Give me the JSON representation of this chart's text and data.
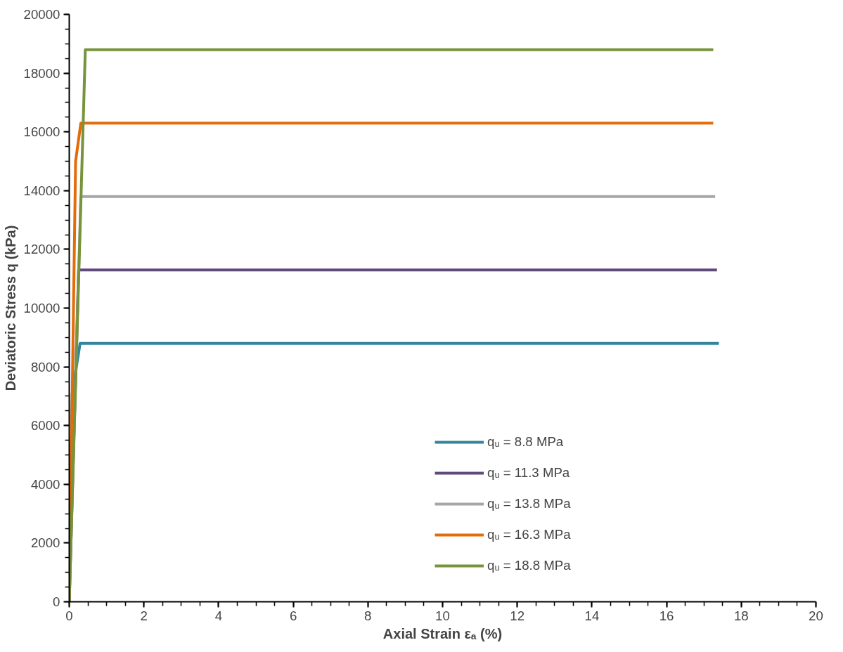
{
  "chart_data": {
    "type": "line",
    "xlabel": "Axial Strain εₐ (%)",
    "ylabel": "Deviatoric Stress q (kPa)",
    "xlim": [
      0,
      20
    ],
    "ylim": [
      0,
      20000
    ],
    "xticks": [
      0,
      2,
      4,
      6,
      8,
      10,
      12,
      14,
      16,
      18,
      20
    ],
    "yticks": [
      0,
      2000,
      4000,
      6000,
      8000,
      10000,
      12000,
      14000,
      16000,
      18000,
      20000
    ],
    "grid": false,
    "legend": "bottom right",
    "marker": "none",
    "line_style": "solid",
    "series": [
      {
        "name": "qᵤ = 8.8 MPa",
        "color": "#31859c",
        "x": [
          0,
          0.08,
          0.29,
          17.4
        ],
        "values": [
          0,
          7100,
          8800,
          8800
        ]
      },
      {
        "name": "qᵤ = 11.3 MPa",
        "color": "#604a7b",
        "x": [
          0,
          0.25,
          17.35
        ],
        "values": [
          0,
          11300,
          11300
        ]
      },
      {
        "name": "qᵤ = 13.8 MPa",
        "color": "#a6a6a6",
        "x": [
          0,
          0.31,
          17.3
        ],
        "values": [
          0,
          13800,
          13800
        ]
      },
      {
        "name": "qᵤ = 16.3 MPa",
        "color": "#e36c09",
        "x": [
          0,
          0.17,
          0.31,
          17.25
        ],
        "values": [
          0,
          15000,
          16300,
          16300
        ]
      },
      {
        "name": "qᵤ = 18.8 MPa",
        "color": "#77933c",
        "x": [
          0,
          0.43,
          17.25
        ],
        "values": [
          0,
          18800,
          18800
        ]
      }
    ]
  }
}
